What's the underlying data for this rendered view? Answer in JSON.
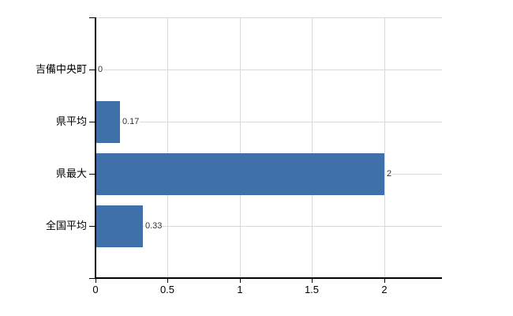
{
  "chart_data": {
    "type": "bar",
    "orientation": "horizontal",
    "title": "",
    "xlabel": "",
    "ylabel": "",
    "categories": [
      "吉備中央町",
      "県平均",
      "県最大",
      "全国平均"
    ],
    "values": [
      0,
      0.17,
      2,
      0.33
    ],
    "value_labels": [
      "0",
      "0.17",
      "2",
      "0.33"
    ],
    "xlim": [
      0,
      2.4
    ],
    "xticks": [
      0,
      0.5,
      1,
      1.5,
      2
    ],
    "xtick_labels": [
      "0",
      "0.5",
      "1",
      "1.5",
      "2"
    ],
    "grid": true,
    "legend": false,
    "bar_color": "#3f70aa",
    "gridline_color": "#d9d9d9",
    "axis_color": "#000000",
    "value_label_color": "#333333",
    "background_color": "#ffffff"
  }
}
